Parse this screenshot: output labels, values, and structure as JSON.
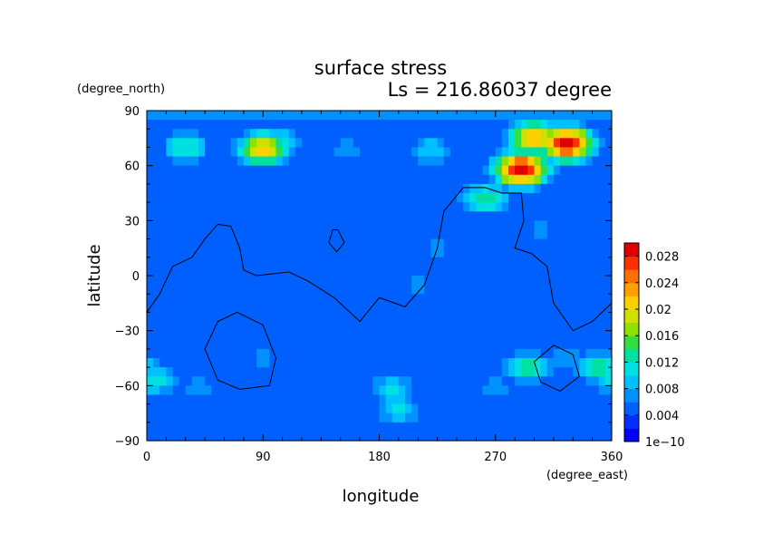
{
  "chart_data": {
    "type": "heatmap",
    "title": "surface stress",
    "subtitle": "Ls = 216.86037 degree",
    "xlabel": "longitude",
    "ylabel": "latitude",
    "x_units": "(degree_east)",
    "y_units": "(degree_north)",
    "xlim": [
      0,
      360
    ],
    "ylim": [
      -90,
      90
    ],
    "x_ticks": [
      "0",
      "90",
      "180",
      "270",
      "360"
    ],
    "y_ticks": [
      "90",
      "60",
      "30",
      "0",
      "−30",
      "−60",
      "−90"
    ],
    "colorbar": {
      "labels": [
        "0.028",
        "0.024",
        "0.02",
        "0.016",
        "0.012",
        "0.008",
        "0.004",
        "1e−10"
      ],
      "range": [
        0,
        0.03
      ],
      "colors": [
        "#0000ff",
        "#0030ff",
        "#0060ff",
        "#0090ff",
        "#00c0ff",
        "#00e0e0",
        "#00e0a0",
        "#30e040",
        "#90e000",
        "#d0e000",
        "#ffd000",
        "#ffa000",
        "#ff7000",
        "#ff3000",
        "#e00000"
      ]
    },
    "field": {
      "background": 0.004,
      "features": [
        {
          "lon": 100,
          "lat": 72,
          "value": 0.013
        },
        {
          "lon": 30,
          "lat": 70,
          "value": 0.012
        },
        {
          "lon": 90,
          "lat": 69,
          "value": 0.021
        },
        {
          "lon": 155,
          "lat": 68,
          "value": 0.008
        },
        {
          "lon": 220,
          "lat": 68,
          "value": 0.01
        },
        {
          "lon": 290,
          "lat": 58,
          "value": 0.03
        },
        {
          "lon": 325,
          "lat": 72,
          "value": 0.03
        },
        {
          "lon": 300,
          "lat": 75,
          "value": 0.022
        },
        {
          "lon": 262,
          "lat": 42,
          "value": 0.014
        },
        {
          "lon": 330,
          "lat": 45,
          "value": 0.006
        },
        {
          "lon": 305,
          "lat": 25,
          "value": 0.007
        },
        {
          "lon": 225,
          "lat": 15,
          "value": 0.007
        },
        {
          "lon": 210,
          "lat": -5,
          "value": 0.007
        },
        {
          "lon": 240,
          "lat": -25,
          "value": 0.005
        },
        {
          "lon": 305,
          "lat": -10,
          "value": 0.006
        },
        {
          "lon": 90,
          "lat": -45,
          "value": 0.007
        },
        {
          "lon": 60,
          "lat": -40,
          "value": 0.005
        },
        {
          "lon": 40,
          "lat": -62,
          "value": 0.008
        },
        {
          "lon": 5,
          "lat": -57,
          "value": 0.012
        },
        {
          "lon": 190,
          "lat": -62,
          "value": 0.011
        },
        {
          "lon": 195,
          "lat": -73,
          "value": 0.011
        },
        {
          "lon": 150,
          "lat": -50,
          "value": 0.005
        },
        {
          "lon": 225,
          "lat": -55,
          "value": 0.005
        },
        {
          "lon": 295,
          "lat": -50,
          "value": 0.014
        },
        {
          "lon": 350,
          "lat": -50,
          "value": 0.013
        },
        {
          "lon": 270,
          "lat": -62,
          "value": 0.008
        },
        {
          "lon": 325,
          "lat": -45,
          "value": 0.008
        }
      ]
    }
  }
}
